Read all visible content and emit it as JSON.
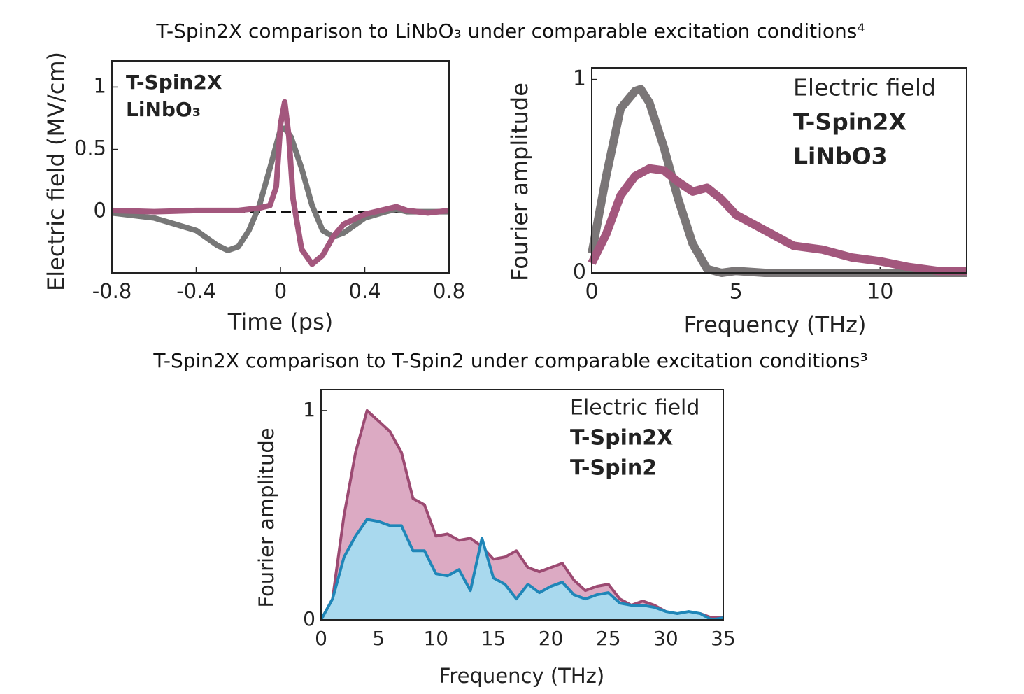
{
  "captions": [
    "T-Spin2X comparison to LiNbO₃ under comparable excitation conditions⁴",
    "T-Spin2X comparison to T-Spin2 under comparable excitation conditions³"
  ],
  "chart_data": [
    {
      "type": "line",
      "xlabel": "Time (ps)",
      "ylabel": "Electric field (MV/cm)",
      "xlim": [
        -0.8,
        0.8
      ],
      "xticks": [
        -0.8,
        -0.4,
        0,
        0.4,
        0.8
      ],
      "ylim": [
        -0.49,
        1.21
      ],
      "yticks": [
        0,
        0.5,
        1
      ],
      "hline": 0,
      "series": [
        {
          "name": "LiNbO₃",
          "color": "#777777",
          "x": [
            -0.8,
            -0.6,
            -0.4,
            -0.3,
            -0.25,
            -0.2,
            -0.15,
            -0.1,
            -0.05,
            0,
            0.02,
            0.05,
            0.1,
            0.15,
            0.2,
            0.25,
            0.3,
            0.4,
            0.5,
            0.55,
            0.6,
            0.8
          ],
          "values": [
            -0.01,
            -0.05,
            -0.15,
            -0.27,
            -0.31,
            -0.28,
            -0.15,
            0.05,
            0.35,
            0.66,
            0.67,
            0.6,
            0.35,
            0.05,
            -0.15,
            -0.2,
            -0.17,
            -0.05,
            0.0,
            0.02,
            0.0,
            0.0
          ]
        },
        {
          "name": "T-Spin2X",
          "color": "#a3577d",
          "x": [
            -0.8,
            -0.6,
            -0.4,
            -0.2,
            -0.1,
            -0.05,
            -0.02,
            0,
            0.02,
            0.04,
            0.06,
            0.1,
            0.15,
            0.2,
            0.25,
            0.3,
            0.4,
            0.5,
            0.55,
            0.6,
            0.7,
            0.8
          ],
          "values": [
            0.01,
            0.0,
            0.01,
            0.01,
            0.03,
            0.05,
            0.2,
            0.7,
            0.88,
            0.6,
            0.1,
            -0.3,
            -0.42,
            -0.35,
            -0.2,
            -0.1,
            -0.02,
            0.02,
            0.04,
            0.01,
            -0.01,
            0.01
          ]
        }
      ]
    },
    {
      "type": "line",
      "xlabel": "Frequency (THz)",
      "ylabel": "Fourier amplitude",
      "legend_title": "Electric field",
      "xlim": [
        0,
        13
      ],
      "xticks": [
        0,
        5,
        10
      ],
      "ylim": [
        0,
        1.06
      ],
      "yticks": [
        0,
        1
      ],
      "series": [
        {
          "name": "LiNbO3",
          "color": "#7a7677",
          "x": [
            0,
            0.5,
            1,
            1.5,
            1.7,
            2,
            2.5,
            3,
            3.5,
            4,
            4.5,
            5,
            6,
            8,
            10,
            12,
            13
          ],
          "values": [
            0.1,
            0.5,
            0.85,
            0.94,
            0.95,
            0.88,
            0.65,
            0.38,
            0.15,
            0.02,
            0,
            0.01,
            0,
            0,
            0,
            0,
            0
          ]
        },
        {
          "name": "T-Spin2X",
          "color": "#a3577d",
          "x": [
            0,
            0.5,
            1,
            1.5,
            2,
            2.5,
            3,
            3.5,
            4,
            4.5,
            5,
            6,
            7,
            8,
            9,
            10,
            11,
            12,
            13
          ],
          "values": [
            0.05,
            0.2,
            0.4,
            0.5,
            0.54,
            0.53,
            0.47,
            0.42,
            0.44,
            0.38,
            0.3,
            0.22,
            0.14,
            0.12,
            0.08,
            0.06,
            0.03,
            0.01,
            0.01
          ]
        }
      ]
    },
    {
      "type": "area",
      "xlabel": "Frequency (THz)",
      "ylabel": "Fourier amplitude",
      "legend_title": "Electric field",
      "xlim": [
        0,
        35
      ],
      "xticks": [
        0,
        5,
        10,
        15,
        20,
        25,
        30,
        35
      ],
      "ylim": [
        0,
        1.1
      ],
      "yticks": [
        0,
        1
      ],
      "x": [
        0,
        1,
        2,
        3,
        4,
        5,
        6,
        7,
        8,
        9,
        10,
        11,
        12,
        13,
        14,
        15,
        16,
        17,
        18,
        19,
        20,
        21,
        22,
        23,
        24,
        25,
        26,
        27,
        28,
        29,
        30,
        31,
        32,
        33,
        34,
        35
      ],
      "series": [
        {
          "name": "T-Spin2X",
          "color": "#9c4a72",
          "fill_color": "#dcaac3",
          "values": [
            0,
            0.1,
            0.5,
            0.8,
            1.0,
            0.95,
            0.9,
            0.8,
            0.58,
            0.55,
            0.4,
            0.41,
            0.38,
            0.39,
            0.35,
            0.29,
            0.3,
            0.33,
            0.25,
            0.23,
            0.25,
            0.27,
            0.19,
            0.14,
            0.16,
            0.17,
            0.1,
            0.07,
            0.09,
            0.07,
            0.04,
            0.02,
            0.02,
            0.03,
            0.01,
            0.01
          ]
        },
        {
          "name": "T-Spin2",
          "color": "#1f86b8",
          "fill_color": "#a9d9ee",
          "values": [
            0,
            0.1,
            0.3,
            0.4,
            0.48,
            0.47,
            0.45,
            0.45,
            0.33,
            0.33,
            0.22,
            0.21,
            0.24,
            0.14,
            0.39,
            0.2,
            0.17,
            0.1,
            0.17,
            0.13,
            0.16,
            0.18,
            0.12,
            0.1,
            0.12,
            0.13,
            0.08,
            0.07,
            0.07,
            0.06,
            0.04,
            0.03,
            0.04,
            0.03,
            0.0,
            0.01
          ]
        }
      ]
    }
  ]
}
